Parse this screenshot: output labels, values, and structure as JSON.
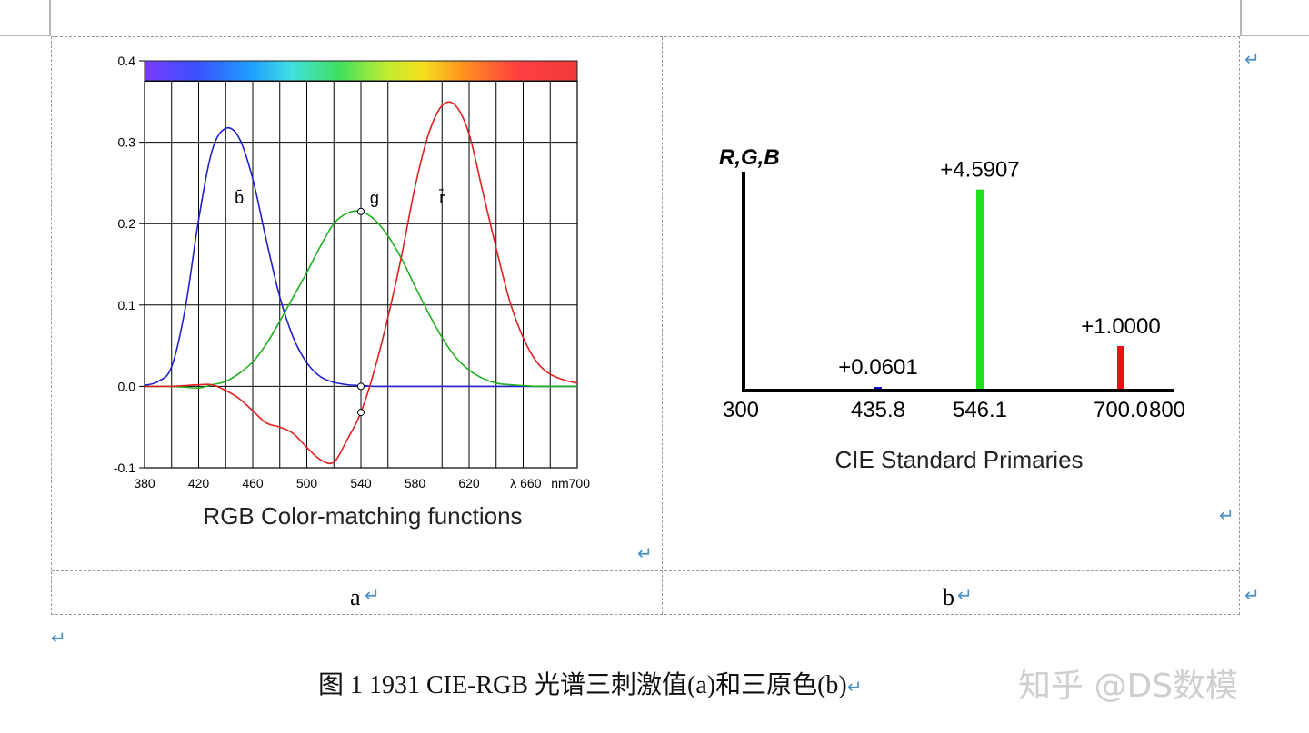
{
  "figure": {
    "caption": "图  1    1931 CIE-RGB  光谱三刺激值(a)和三原色(b)",
    "watermark": "知乎 @DS数模",
    "sublabels": [
      "a",
      "b"
    ]
  },
  "colors": {
    "blue": "#2020d0",
    "green": "#20b020",
    "red": "#e02020",
    "bright_green": "#20e020",
    "bright_red": "#ee1111",
    "return_mark": "#4a90c8"
  },
  "icons": {
    "return_mark": "return-arrow-icon"
  },
  "return_glyph": "↵",
  "chart_data": [
    {
      "type": "line",
      "title": "RGB Color-matching functions",
      "xlabel": "λ nm",
      "ylabel": "",
      "xlim": [
        380,
        700
      ],
      "ylim": [
        -0.1,
        0.4
      ],
      "x_ticks": [
        380,
        420,
        460,
        500,
        540,
        580,
        620,
        660,
        700
      ],
      "x_tick_labels": [
        "380",
        "420",
        "460",
        "500",
        "540",
        "580",
        "620",
        "λ  660",
        "nm700"
      ],
      "y_ticks": [
        -0.1,
        0.0,
        0.1,
        0.2,
        0.3,
        0.4
      ],
      "y_tick_labels": [
        "-0.1",
        "0.0",
        "0.1",
        "0.2",
        "0.3",
        "0.4"
      ],
      "grid": true,
      "spectrum_bar": true,
      "x": [
        380,
        390,
        400,
        410,
        420,
        430,
        440,
        450,
        460,
        470,
        480,
        490,
        500,
        510,
        520,
        530,
        540,
        550,
        560,
        570,
        580,
        590,
        600,
        610,
        620,
        630,
        640,
        650,
        660,
        670,
        680,
        690,
        700
      ],
      "series": [
        {
          "name": "b̄",
          "color": "#2020d0",
          "label_at": [
            450,
            0.225
          ],
          "values": [
            0.0012,
            0.006,
            0.024,
            0.095,
            0.205,
            0.29,
            0.317,
            0.305,
            0.255,
            0.18,
            0.11,
            0.06,
            0.029,
            0.012,
            0.005,
            0.002,
            0.001,
            0,
            0,
            0,
            0,
            0,
            0,
            0,
            0,
            0,
            0,
            0,
            0,
            0,
            0,
            0,
            0
          ]
        },
        {
          "name": "ḡ",
          "color": "#20b020",
          "label_at": [
            550,
            0.225
          ],
          "values": [
            0,
            0,
            0,
            -0.001,
            -0.002,
            0.002,
            0.006,
            0.016,
            0.03,
            0.052,
            0.08,
            0.11,
            0.14,
            0.172,
            0.2,
            0.213,
            0.215,
            0.205,
            0.185,
            0.157,
            0.123,
            0.09,
            0.06,
            0.036,
            0.02,
            0.01,
            0.004,
            0.002,
            0.001,
            0,
            0,
            0,
            0
          ]
        },
        {
          "name": "r̄",
          "color": "#e02020",
          "label_at": [
            600,
            0.225
          ],
          "values": [
            0,
            0,
            0,
            0.001,
            0.002,
            0.002,
            -0.005,
            -0.015,
            -0.03,
            -0.045,
            -0.05,
            -0.058,
            -0.075,
            -0.09,
            -0.093,
            -0.065,
            -0.032,
            0.02,
            0.085,
            0.16,
            0.245,
            0.31,
            0.345,
            0.345,
            0.31,
            0.24,
            0.17,
            0.105,
            0.06,
            0.03,
            0.015,
            0.008,
            0.004
          ]
        }
      ],
      "markers": [
        [
          540,
          0.215
        ],
        [
          540,
          0.0
        ],
        [
          540,
          -0.032
        ]
      ]
    },
    {
      "type": "bar",
      "title": "CIE Standard Primaries",
      "ylabel": "R,G,B",
      "xlim": [
        300,
        800
      ],
      "x_tick_labels": [
        "300",
        "435.8",
        "546.1",
        "700.0",
        "800"
      ],
      "x_ticks": [
        300,
        435.8,
        546.1,
        700.0,
        800
      ],
      "ylim": [
        0,
        5
      ],
      "bars": [
        {
          "x": 435.8,
          "value": 0.0601,
          "label": "+0.0601",
          "color": "#0000cc"
        },
        {
          "x": 546.1,
          "value": 4.5907,
          "label": "+4.5907",
          "color": "#20e020"
        },
        {
          "x": 700.0,
          "value": 1.0,
          "label": "+1.0000",
          "color": "#ee1111"
        }
      ]
    }
  ]
}
